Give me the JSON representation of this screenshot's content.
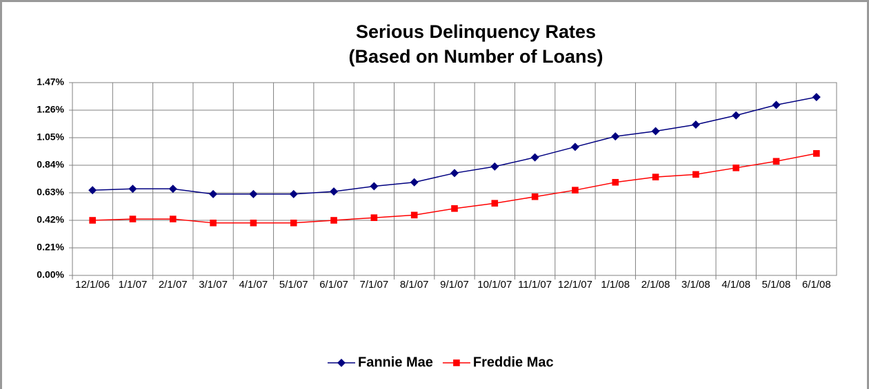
{
  "chart_data": {
    "type": "line",
    "title": "Serious Delinquency Rates",
    "subtitle": "(Based on Number of Loans)",
    "categories": [
      "12/1/06",
      "1/1/07",
      "2/1/07",
      "3/1/07",
      "4/1/07",
      "5/1/07",
      "6/1/07",
      "7/1/07",
      "8/1/07",
      "9/1/07",
      "10/1/07",
      "11/1/07",
      "12/1/07",
      "1/1/08",
      "2/1/08",
      "3/1/08",
      "4/1/08",
      "5/1/08",
      "6/1/08"
    ],
    "series": [
      {
        "name": "Fannie Mae",
        "color": "#000080",
        "marker": "diamond",
        "values": [
          0.65,
          0.66,
          0.66,
          0.62,
          0.62,
          0.62,
          0.64,
          0.68,
          0.71,
          0.78,
          0.83,
          0.9,
          0.98,
          1.06,
          1.1,
          1.15,
          1.22,
          1.3,
          1.36
        ]
      },
      {
        "name": "Freddie Mac",
        "color": "#ff0000",
        "marker": "square",
        "values": [
          0.42,
          0.43,
          0.43,
          0.4,
          0.4,
          0.4,
          0.42,
          0.44,
          0.46,
          0.51,
          0.55,
          0.6,
          0.65,
          0.71,
          0.75,
          0.77,
          0.82,
          0.87,
          0.93
        ]
      }
    ],
    "ylim": [
      0,
      1.47
    ],
    "yticks": [
      {
        "value": 0,
        "label": "0.00%"
      },
      {
        "value": 0.21,
        "label": "0.21%"
      },
      {
        "value": 0.42,
        "label": "0.42%"
      },
      {
        "value": 0.63,
        "label": "0.63%"
      },
      {
        "value": 0.84,
        "label": "0.84%"
      },
      {
        "value": 1.05,
        "label": "1.05%"
      },
      {
        "value": 1.26,
        "label": "1.26%"
      },
      {
        "value": 1.47,
        "label": "1.47%"
      }
    ],
    "grid": true,
    "legend": "bottom"
  }
}
